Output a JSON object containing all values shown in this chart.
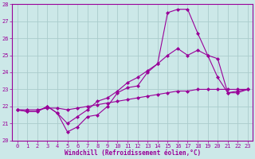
{
  "x_values": [
    0,
    1,
    2,
    3,
    4,
    5,
    6,
    7,
    8,
    9,
    10,
    11,
    12,
    13,
    14,
    15,
    16,
    17,
    18,
    19,
    20,
    21,
    22,
    23
  ],
  "line1": [
    21.8,
    21.7,
    21.7,
    22.0,
    21.6,
    20.5,
    20.8,
    21.4,
    21.5,
    22.0,
    22.8,
    23.1,
    23.2,
    24.0,
    24.5,
    27.5,
    27.7,
    27.7,
    26.3,
    25.0,
    23.7,
    22.8,
    22.9,
    23.0
  ],
  "line2": [
    21.8,
    21.7,
    21.7,
    22.0,
    21.6,
    21.0,
    21.4,
    21.8,
    22.3,
    22.5,
    22.9,
    23.4,
    23.7,
    24.1,
    24.5,
    25.0,
    25.4,
    25.0,
    25.3,
    25.0,
    24.8,
    22.8,
    22.8,
    23.0
  ],
  "line3": [
    21.8,
    21.8,
    21.8,
    21.9,
    21.9,
    21.8,
    21.9,
    22.0,
    22.1,
    22.2,
    22.3,
    22.4,
    22.5,
    22.6,
    22.7,
    22.8,
    22.9,
    22.9,
    23.0,
    23.0,
    23.0,
    23.0,
    23.0,
    23.0
  ],
  "line_color": "#990099",
  "bg_color": "#cce8e8",
  "grid_color": "#aacccc",
  "ylim": [
    20,
    28
  ],
  "xlim": [
    -0.5,
    23.5
  ],
  "yticks": [
    20,
    21,
    22,
    23,
    24,
    25,
    26,
    27,
    28
  ],
  "xticks": [
    0,
    1,
    2,
    3,
    4,
    5,
    6,
    7,
    8,
    9,
    10,
    11,
    12,
    13,
    14,
    15,
    16,
    17,
    18,
    19,
    20,
    21,
    22,
    23
  ],
  "xlabel": "Windchill (Refroidissement éolien,°C)",
  "marker": "D",
  "markersize": 2.0,
  "linewidth": 0.8,
  "tick_fontsize": 5.0,
  "xlabel_fontsize": 5.5
}
